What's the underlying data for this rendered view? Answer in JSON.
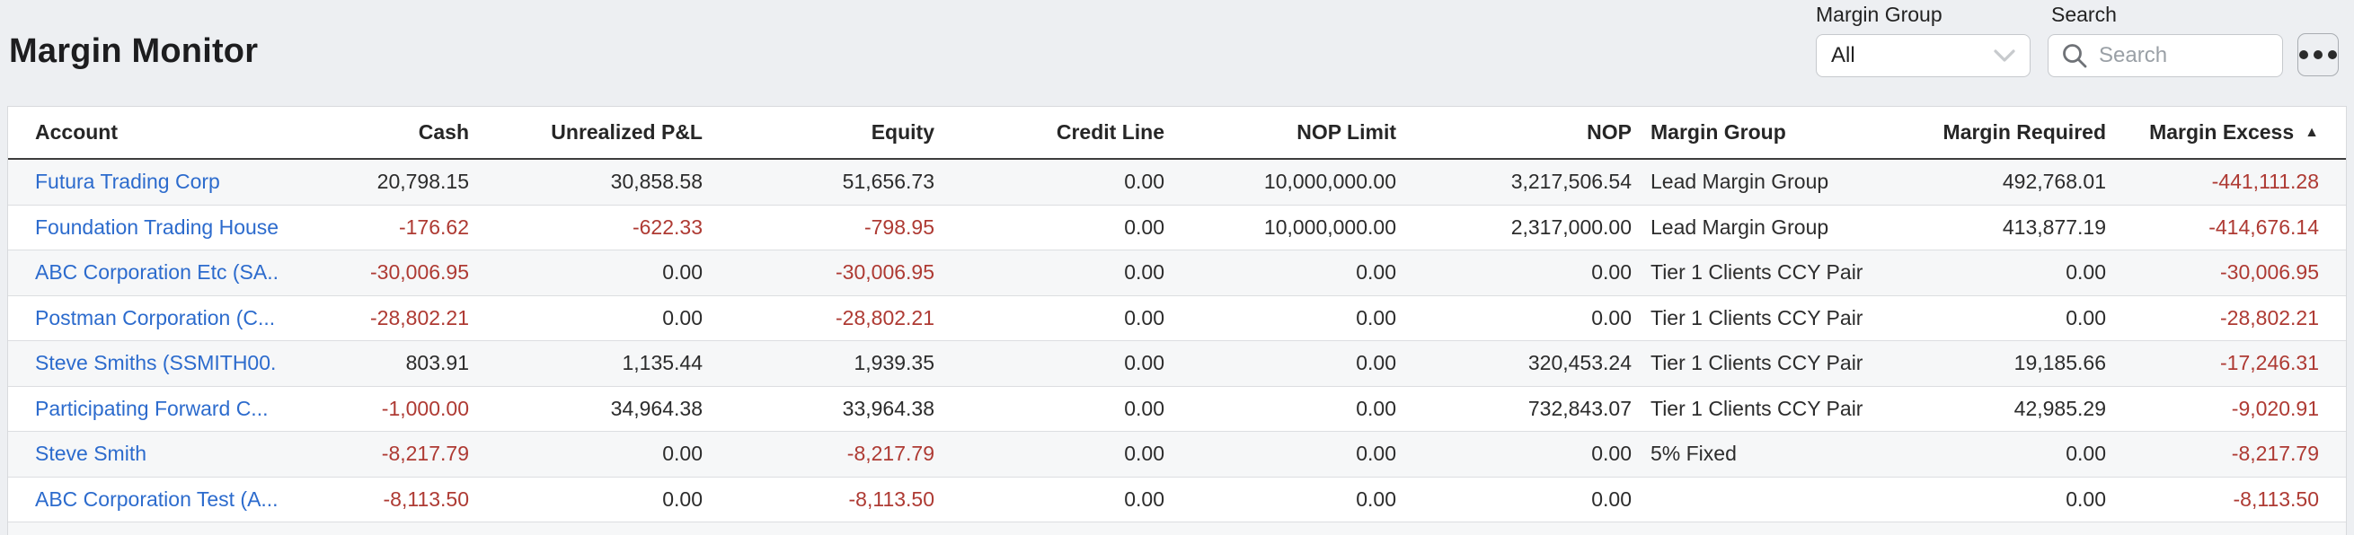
{
  "page": {
    "title": "Margin Monitor"
  },
  "colors": {
    "page_bg": "#edeff2",
    "link_blue": "#2c6bcd",
    "negative_red": "#ae3a33",
    "alt_row_bg": "#f6f7f8",
    "header_rule": "#3d3d3d"
  },
  "controls": {
    "margin_group_label": "Margin Group",
    "margin_group_value": "All",
    "search_label": "Search",
    "search_placeholder": "Search",
    "search_value": ""
  },
  "icons": {
    "chevron_down": "chevron-down",
    "search": "magnifier",
    "more": "ellipsis",
    "sort_asc_glyph": "▲"
  },
  "table": {
    "columns": [
      {
        "key": "account",
        "label": "Account",
        "align": "left"
      },
      {
        "key": "cash",
        "label": "Cash",
        "align": "right"
      },
      {
        "key": "unrealized_pnl",
        "label": "Unrealized P&L",
        "align": "right"
      },
      {
        "key": "equity",
        "label": "Equity",
        "align": "right"
      },
      {
        "key": "credit_line",
        "label": "Credit Line",
        "align": "right"
      },
      {
        "key": "nop_limit",
        "label": "NOP Limit",
        "align": "right"
      },
      {
        "key": "nop",
        "label": "NOP",
        "align": "right"
      },
      {
        "key": "margin_group",
        "label": "Margin Group",
        "align": "left"
      },
      {
        "key": "margin_required",
        "label": "Margin Required",
        "align": "right"
      },
      {
        "key": "margin_excess",
        "label": "Margin Excess",
        "align": "right",
        "sort": "asc"
      }
    ],
    "rows": [
      {
        "account": "Futura Trading Corp",
        "cash": "20,798.15",
        "unrealized_pnl": "30,858.58",
        "equity": "51,656.73",
        "credit_line": "0.00",
        "nop_limit": "10,000,000.00",
        "nop": "3,217,506.54",
        "margin_group": "Lead Margin Group",
        "margin_required": "492,768.01",
        "margin_excess": "-441,111.28"
      },
      {
        "account": "Foundation Trading House",
        "cash": "-176.62",
        "unrealized_pnl": "-622.33",
        "equity": "-798.95",
        "credit_line": "0.00",
        "nop_limit": "10,000,000.00",
        "nop": "2,317,000.00",
        "margin_group": "Lead Margin Group",
        "margin_required": "413,877.19",
        "margin_excess": "-414,676.14"
      },
      {
        "account": "ABC Corporation Etc (SA...",
        "cash": "-30,006.95",
        "unrealized_pnl": "0.00",
        "equity": "-30,006.95",
        "credit_line": "0.00",
        "nop_limit": "0.00",
        "nop": "0.00",
        "margin_group": "Tier 1 Clients CCY Pair",
        "margin_required": "0.00",
        "margin_excess": "-30,006.95"
      },
      {
        "account": "Postman Corporation (C...",
        "cash": "-28,802.21",
        "unrealized_pnl": "0.00",
        "equity": "-28,802.21",
        "credit_line": "0.00",
        "nop_limit": "0.00",
        "nop": "0.00",
        "margin_group": "Tier 1 Clients CCY Pair",
        "margin_required": "0.00",
        "margin_excess": "-28,802.21"
      },
      {
        "account": "Steve Smiths (SSMITH00...",
        "cash": "803.91",
        "unrealized_pnl": "1,135.44",
        "equity": "1,939.35",
        "credit_line": "0.00",
        "nop_limit": "0.00",
        "nop": "320,453.24",
        "margin_group": "Tier 1 Clients CCY Pair",
        "margin_required": "19,185.66",
        "margin_excess": "-17,246.31"
      },
      {
        "account": "Participating Forward C...",
        "cash": "-1,000.00",
        "unrealized_pnl": "34,964.38",
        "equity": "33,964.38",
        "credit_line": "0.00",
        "nop_limit": "0.00",
        "nop": "732,843.07",
        "margin_group": "Tier 1 Clients CCY Pair",
        "margin_required": "42,985.29",
        "margin_excess": "-9,020.91"
      },
      {
        "account": "Steve Smith",
        "cash": "-8,217.79",
        "unrealized_pnl": "0.00",
        "equity": "-8,217.79",
        "credit_line": "0.00",
        "nop_limit": "0.00",
        "nop": "0.00",
        "margin_group": "5% Fixed",
        "margin_required": "0.00",
        "margin_excess": "-8,217.79"
      },
      {
        "account": "ABC Corporation Test (A...",
        "cash": "-8,113.50",
        "unrealized_pnl": "0.00",
        "equity": "-8,113.50",
        "credit_line": "0.00",
        "nop_limit": "0.00",
        "nop": "0.00",
        "margin_group": "",
        "margin_required": "0.00",
        "margin_excess": "-8,113.50"
      }
    ]
  }
}
